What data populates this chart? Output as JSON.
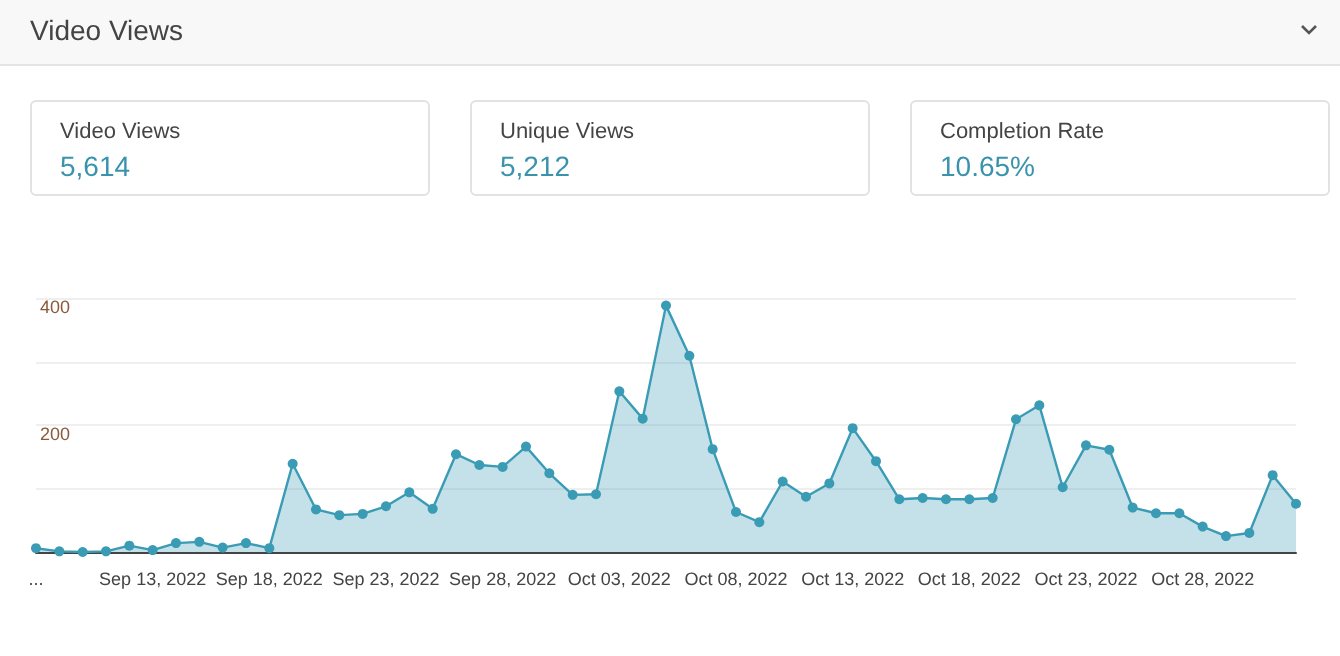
{
  "chart_data": [
    {
      "type": "other",
      "title": "Video Views",
      "categories": [
        "Video Views",
        "Unique Views",
        "Completion Rate"
      ],
      "value_labels": [
        "5,614",
        "5,212",
        "10.65%"
      ],
      "color": "#3a93ad"
    },
    {
      "type": "area",
      "categories": [
        "...",
        null,
        null,
        null,
        null,
        "Sep 13, 2022",
        null,
        null,
        null,
        null,
        "Sep 18, 2022",
        null,
        null,
        null,
        null,
        "Sep 23, 2022",
        null,
        null,
        null,
        null,
        "Sep 28, 2022",
        null,
        null,
        null,
        null,
        "Oct 03, 2022",
        null,
        null,
        null,
        null,
        "Oct 08, 2022",
        null,
        null,
        null,
        null,
        "Oct 13, 2022",
        null,
        null,
        null,
        null,
        "Oct 18, 2022",
        null,
        null,
        null,
        null,
        "Oct 23, 2022",
        null,
        null,
        null,
        null,
        "Oct 28, 2022",
        null,
        null,
        null,
        null
      ],
      "values": [
        6,
        1,
        0,
        1,
        10,
        3,
        14,
        16,
        7,
        14,
        6,
        139,
        67,
        58,
        60,
        72,
        94,
        68,
        154,
        137,
        134,
        166,
        124,
        90,
        91,
        253,
        210,
        388,
        309,
        162,
        63,
        47,
        111,
        87,
        108,
        195,
        143,
        83,
        85,
        83,
        83,
        85,
        209,
        231,
        102,
        168,
        161,
        70,
        61,
        61,
        40,
        25,
        30,
        121,
        76
      ],
      "color": "#3a9bb5",
      "ylim": [
        0,
        400
      ],
      "yticks": [
        {
          "value": 0,
          "label": null
        },
        {
          "value": 100,
          "label": null
        },
        200,
        {
          "value": 300,
          "label": null
        },
        400
      ],
      "grid": "y",
      "marker": "circle"
    }
  ]
}
